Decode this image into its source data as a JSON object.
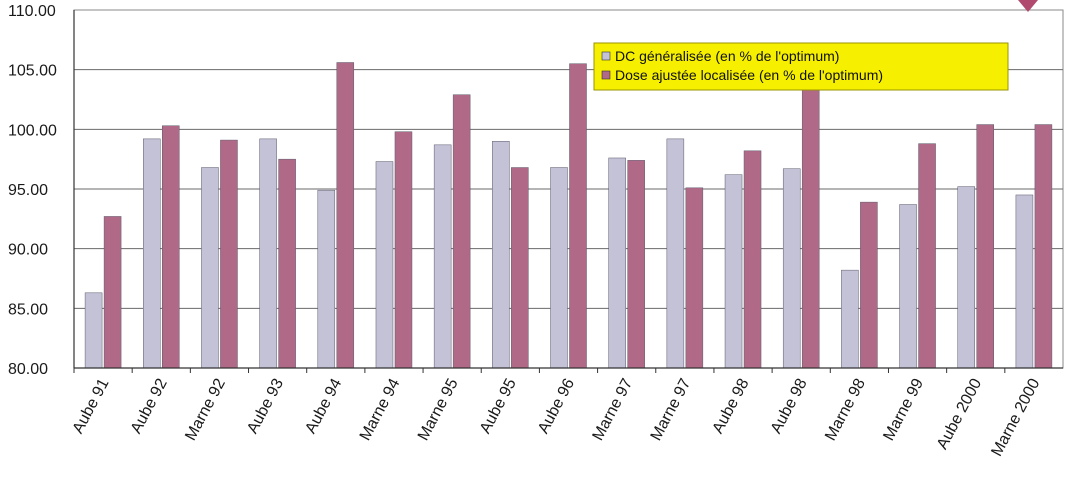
{
  "chart_data": {
    "type": "bar",
    "title": "",
    "xlabel": "",
    "ylabel": "",
    "ylim": [
      80,
      110
    ],
    "yticks": [
      "80.00",
      "85.00",
      "90.00",
      "95.00",
      "100.00",
      "105.00",
      "110.00"
    ],
    "grid": true,
    "legend_position": "top-right",
    "categories": [
      "Aube 91",
      "Aube 92",
      "Marne 92",
      "Aube 93",
      "Aube 94",
      "Marne 94",
      "Marne 95",
      "Aube 95",
      "Aube 96",
      "Marne 97",
      "Marne 97",
      "Aube 98",
      "Aube 98",
      "Marne 98",
      "Marne 99",
      "Aube 2000",
      "Marne 2000"
    ],
    "series": [
      {
        "name": "DC généralisée (en % de l'optimum)",
        "color": "#c4c2d6",
        "values": [
          86.3,
          99.2,
          96.8,
          99.2,
          94.9,
          97.3,
          98.7,
          99.0,
          96.8,
          97.6,
          99.2,
          96.2,
          96.7,
          88.2,
          93.7,
          95.2,
          94.5
        ]
      },
      {
        "name": "Dose ajustée localisée (en % de l'optimum)",
        "color": "#b06a88",
        "values": [
          92.7,
          100.3,
          99.1,
          97.5,
          105.6,
          99.8,
          102.9,
          96.8,
          105.5,
          97.4,
          95.1,
          98.2,
          103.9,
          93.9,
          98.8,
          100.4,
          100.4
        ]
      }
    ]
  }
}
